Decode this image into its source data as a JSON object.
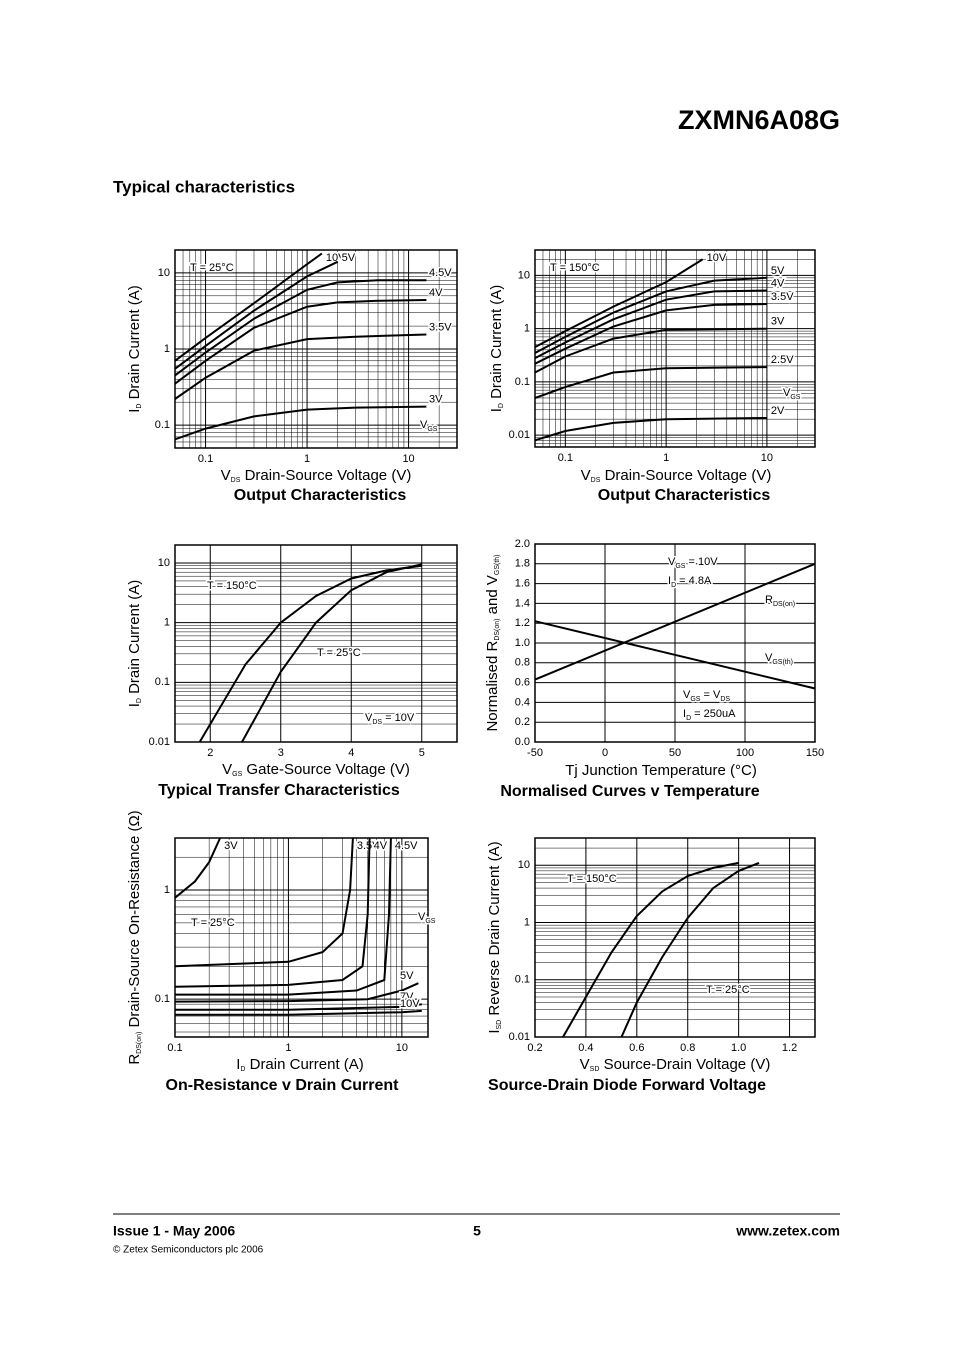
{
  "header": {
    "title": "ZXMN6A08G",
    "section": "Typical characteristics"
  },
  "footer": {
    "issue": "Issue 1 - May 2006",
    "page": "5",
    "website": "www.zetex.com",
    "copyright": "© Zetex Semiconductors plc 2006"
  },
  "chart_data": [
    {
      "type": "line",
      "title": "Output Characteristics",
      "xlabel": [
        "V",
        "DS",
        " Drain-Source Voltage (V)"
      ],
      "ylabel": [
        "I",
        "D",
        " Drain Current (A)"
      ],
      "xlog": true,
      "ylog": true,
      "grid": true,
      "color": "#000000",
      "xlim": [
        0.05,
        30
      ],
      "ylim": [
        0.05,
        20
      ],
      "xticks": [
        0.1,
        1,
        10
      ],
      "yticks": [
        0.1,
        1,
        10
      ],
      "annotations": [
        [
          "T = 25°C"
        ],
        [
          "V",
          "GS"
        ]
      ],
      "series": [
        {
          "name": "10V",
          "x": [
            0.05,
            0.1,
            0.3,
            1,
            1.4
          ],
          "values": [
            0.7,
            1.4,
            4,
            13,
            18
          ]
        },
        {
          "name": "5V",
          "x": [
            0.05,
            0.1,
            0.3,
            1,
            2
          ],
          "values": [
            0.55,
            1.1,
            3.2,
            9,
            14
          ]
        },
        {
          "name": "4.5V",
          "x": [
            0.05,
            0.1,
            0.3,
            1,
            2,
            5,
            15
          ],
          "values": [
            0.45,
            0.9,
            2.5,
            6,
            7.5,
            8,
            8
          ]
        },
        {
          "name": "4V",
          "x": [
            0.05,
            0.1,
            0.3,
            1,
            2,
            5,
            15
          ],
          "values": [
            0.35,
            0.7,
            1.9,
            3.6,
            4.1,
            4.3,
            4.4
          ]
        },
        {
          "name": "3.5V",
          "x": [
            0.05,
            0.1,
            0.3,
            1,
            3,
            15
          ],
          "values": [
            0.22,
            0.42,
            0.95,
            1.35,
            1.45,
            1.55
          ]
        },
        {
          "name": "3V",
          "x": [
            0.05,
            0.1,
            0.3,
            1,
            3,
            15
          ],
          "values": [
            0.065,
            0.09,
            0.13,
            0.16,
            0.17,
            0.175
          ]
        }
      ]
    },
    {
      "type": "line",
      "title": "Output Characteristics",
      "xlabel": [
        "V",
        "DS",
        " Drain-Source Voltage (V)"
      ],
      "ylabel": [
        "I",
        "D",
        " Drain Current (A)"
      ],
      "xlog": true,
      "ylog": true,
      "grid": true,
      "color": "#000000",
      "xlim": [
        0.05,
        30
      ],
      "ylim": [
        0.006,
        30
      ],
      "xticks": [
        0.1,
        1,
        10
      ],
      "yticks": [
        0.01,
        0.1,
        1,
        10
      ],
      "annotations": [
        [
          "T = 150°C"
        ],
        [
          "V",
          "GS"
        ]
      ],
      "series": [
        {
          "name": "10V",
          "x": [
            0.05,
            0.1,
            0.3,
            1,
            2.3
          ],
          "values": [
            0.45,
            0.9,
            2.6,
            7.5,
            20
          ]
        },
        {
          "name": "5V",
          "x": [
            0.05,
            0.1,
            0.3,
            1,
            3,
            10
          ],
          "values": [
            0.35,
            0.7,
            2,
            5,
            8,
            9
          ]
        },
        {
          "name": "4V",
          "x": [
            0.05,
            0.1,
            0.3,
            1,
            3,
            10
          ],
          "values": [
            0.28,
            0.55,
            1.5,
            3.5,
            5,
            5.2
          ]
        },
        {
          "name": "3.5V",
          "x": [
            0.05,
            0.1,
            0.3,
            1,
            3,
            10
          ],
          "values": [
            0.22,
            0.42,
            1.1,
            2.2,
            2.8,
            2.9
          ]
        },
        {
          "name": "3V",
          "x": [
            0.05,
            0.1,
            0.3,
            1,
            10
          ],
          "values": [
            0.15,
            0.3,
            0.65,
            0.95,
            1
          ]
        },
        {
          "name": "2.5V",
          "x": [
            0.05,
            0.1,
            0.3,
            1,
            10
          ],
          "values": [
            0.05,
            0.08,
            0.15,
            0.18,
            0.19
          ]
        },
        {
          "name": "2V",
          "x": [
            0.05,
            0.1,
            0.3,
            1,
            10
          ],
          "values": [
            0.008,
            0.012,
            0.017,
            0.02,
            0.021
          ]
        }
      ]
    },
    {
      "type": "line",
      "title": "Typical Transfer Characteristics",
      "xlabel": [
        "V",
        "GS",
        " Gate-Source Voltage (V)"
      ],
      "ylabel": [
        "I",
        "D",
        " Drain Current (A)"
      ],
      "ylog": true,
      "grid": true,
      "color": "#000000",
      "xlim": [
        1.5,
        5.5
      ],
      "ylim": [
        0.01,
        20
      ],
      "xticks": [
        2,
        3,
        4,
        5
      ],
      "yticks": [
        0.01,
        0.1,
        1,
        10
      ],
      "annotations": [
        [
          "T = 150°C"
        ],
        [
          "T = 25°C"
        ],
        [
          "V",
          "DS",
          " = 10V"
        ]
      ],
      "series": [
        {
          "name": "T = 150°C",
          "x": [
            1.85,
            2.5,
            3,
            3.5,
            4,
            4.5,
            5
          ],
          "values": [
            0.01,
            0.2,
            1,
            2.8,
            5.5,
            7.5,
            9
          ]
        },
        {
          "name": "T = 25°C",
          "x": [
            2.45,
            3,
            3.5,
            4,
            4.5,
            5
          ],
          "values": [
            0.01,
            0.15,
            1,
            3.5,
            7,
            9.5
          ]
        }
      ]
    },
    {
      "type": "line",
      "title": "Normalised Curves v Temperature",
      "xlabel": [
        "Tj  Junction Temperature (°C)"
      ],
      "ylabel": [
        "Normalised R",
        "DS(on)",
        " and V",
        "GS(th)"
      ],
      "grid": true,
      "color": "#000000",
      "xlim": [
        -50,
        150
      ],
      "ylim": [
        0,
        2
      ],
      "xticks": [
        -50,
        0,
        50,
        100,
        150
      ],
      "yticks": [
        {
          "value": 0,
          "label": "0.0"
        },
        0.2,
        0.4,
        0.6,
        0.8,
        {
          "value": 1,
          "label": "1.0"
        },
        1.2,
        1.4,
        1.6,
        1.8,
        {
          "value": 2,
          "label": "2.0"
        }
      ],
      "annotations": [
        [
          "V",
          "GS",
          " = 10V"
        ],
        [
          "I",
          "D",
          " = 4.8A"
        ],
        [
          "R",
          "DS(on)"
        ],
        [
          "V",
          "GS(th)"
        ],
        [
          "V",
          "GS",
          " = V",
          "DS"
        ],
        [
          "I",
          "D",
          " = 250uA"
        ]
      ],
      "series": [
        {
          "name": "RDS(on)",
          "x": [
            -50,
            150
          ],
          "values": [
            0.63,
            1.8
          ]
        },
        {
          "name": "VGS(th)",
          "x": [
            -50,
            150
          ],
          "values": [
            1.22,
            0.54
          ]
        }
      ]
    },
    {
      "type": "line",
      "title": "On-Resistance v Drain Current",
      "xlabel": [
        "I",
        "D",
        " Drain Current (A)"
      ],
      "ylabel": [
        "R",
        "DS(on)",
        " Drain-Source On-Resistance (Ω)"
      ],
      "xlog": true,
      "ylog": true,
      "grid": true,
      "color": "#000000",
      "xlim": [
        0.1,
        17
      ],
      "ylim": [
        0.045,
        3
      ],
      "xticks": [
        0.1,
        1,
        10
      ],
      "yticks": [
        0.1,
        1
      ],
      "annotations": [
        [
          "T = 25°C"
        ],
        [
          "V",
          "GS"
        ]
      ],
      "series": [
        {
          "name": "3V",
          "x": [
            0.1,
            0.15,
            0.2,
            0.25
          ],
          "values": [
            0.85,
            1.2,
            1.8,
            3
          ]
        },
        {
          "name": "3.5V",
          "x": [
            0.1,
            1,
            2,
            3,
            3.5,
            3.7
          ],
          "values": [
            0.2,
            0.22,
            0.27,
            0.4,
            1,
            3
          ]
        },
        {
          "name": "4V",
          "x": [
            0.1,
            1,
            3,
            4.5,
            5,
            5.2
          ],
          "values": [
            0.13,
            0.135,
            0.15,
            0.2,
            0.6,
            3
          ]
        },
        {
          "name": "4.5V",
          "x": [
            0.1,
            1,
            4,
            7,
            7.7,
            8
          ],
          "values": [
            0.11,
            0.11,
            0.12,
            0.15,
            0.6,
            3
          ]
        },
        {
          "name": "5V",
          "x": [
            0.1,
            1,
            5,
            10,
            14
          ],
          "values": [
            0.095,
            0.096,
            0.1,
            0.12,
            0.14
          ]
        },
        {
          "name": "7V",
          "x": [
            0.1,
            1,
            10,
            15
          ],
          "values": [
            0.08,
            0.08,
            0.085,
            0.09
          ]
        },
        {
          "name": "10V",
          "x": [
            0.1,
            1,
            10,
            15
          ],
          "values": [
            0.072,
            0.072,
            0.076,
            0.078
          ]
        }
      ]
    },
    {
      "type": "line",
      "title": "Source-Drain Diode Forward Voltage",
      "xlabel": [
        "V",
        "SD",
        " Source-Drain Voltage (V)"
      ],
      "ylabel": [
        "I",
        "SD",
        " Reverse Drain Current (A)"
      ],
      "ylog": true,
      "grid": true,
      "color": "#000000",
      "xlim": [
        0.2,
        1.3
      ],
      "ylim": [
        0.01,
        30
      ],
      "xticks": [
        0.2,
        0.4,
        0.6,
        0.8,
        {
          "value": 1,
          "label": "1.0"
        },
        1.2
      ],
      "yticks": [
        0.01,
        0.1,
        1,
        10
      ],
      "annotations": [
        [
          "T = 150°C"
        ],
        [
          "T = 25°C"
        ]
      ],
      "series": [
        {
          "name": "T = 150°C",
          "x": [
            0.31,
            0.4,
            0.5,
            0.6,
            0.7,
            0.8,
            0.9,
            1
          ],
          "values": [
            0.01,
            0.05,
            0.3,
            1.3,
            3.5,
            6.5,
            9,
            11
          ]
        },
        {
          "name": "T = 25°C",
          "x": [
            0.54,
            0.6,
            0.7,
            0.8,
            0.9,
            1,
            1.08
          ],
          "values": [
            0.01,
            0.04,
            0.25,
            1.2,
            4,
            8,
            11
          ]
        }
      ]
    }
  ]
}
